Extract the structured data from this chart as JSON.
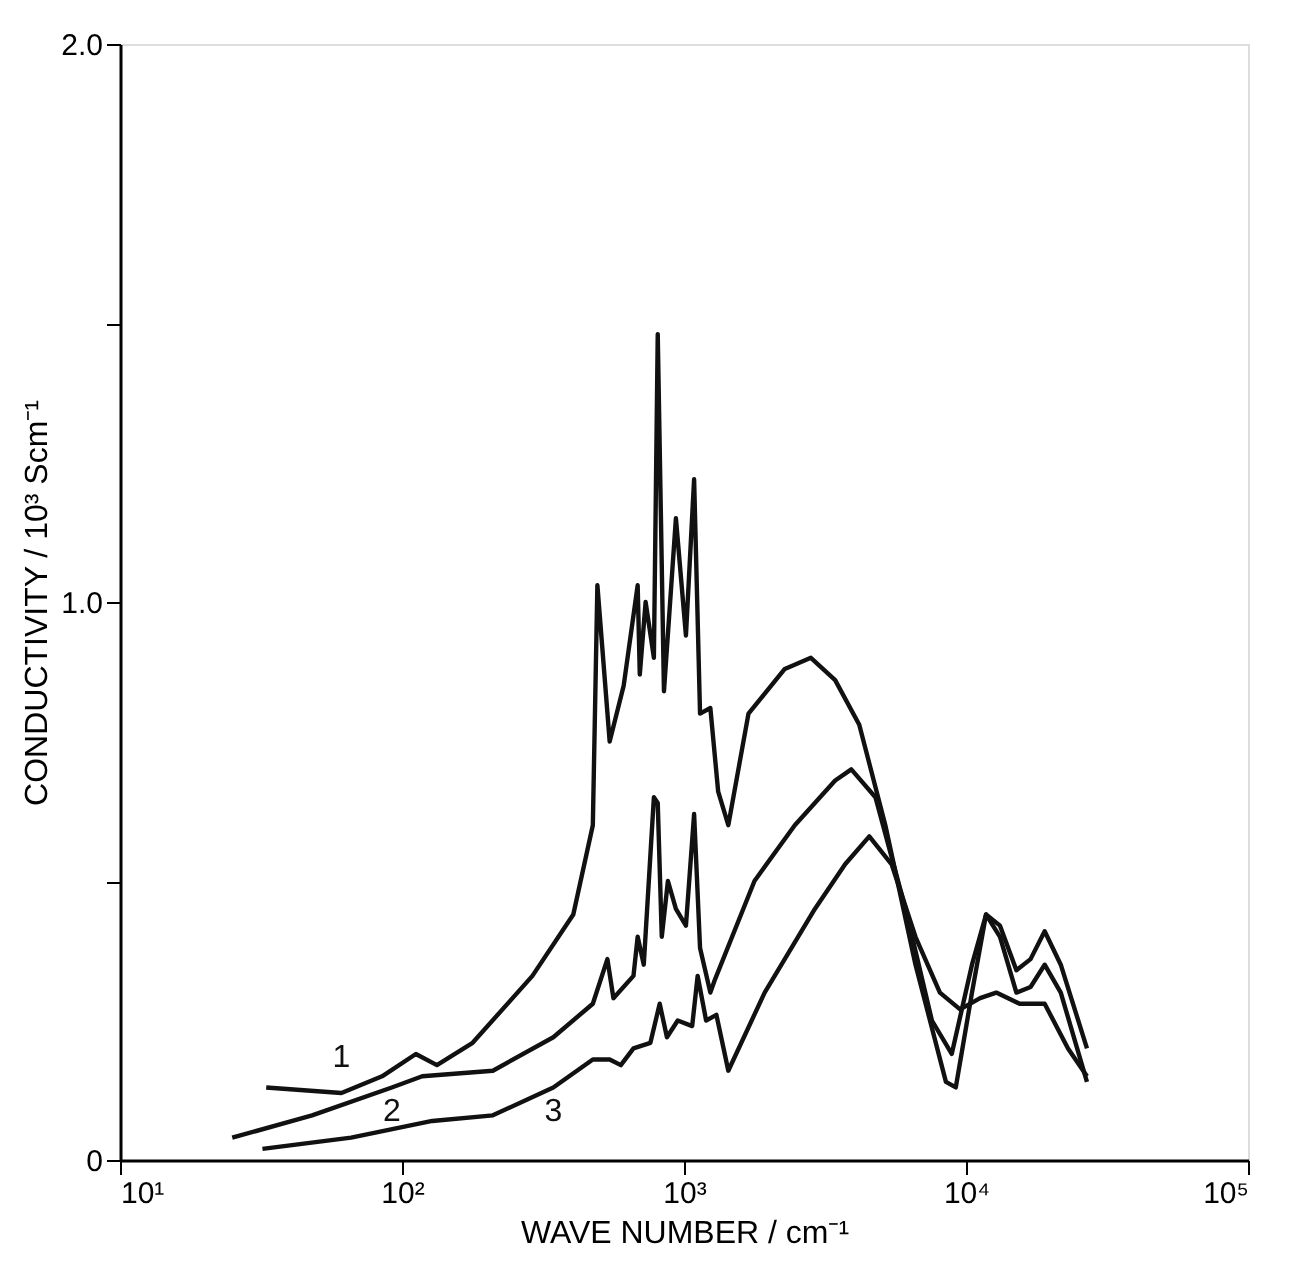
{
  "chart_data": {
    "type": "line",
    "xlabel": "WAVE NUMBER / cm⁻¹",
    "ylabel": "CONDUCTIVITY / 10³ Scm⁻¹",
    "log": "x",
    "grid": false,
    "marker": "none",
    "line_style": "solid",
    "xlim": [
      10,
      100000
    ],
    "xticks": [
      {
        "value": 10,
        "label": "10¹"
      },
      {
        "value": 100,
        "label": "10²"
      },
      {
        "value": 1000,
        "label": "10³"
      },
      {
        "value": 10000,
        "label": "10⁴"
      },
      {
        "value": 100000,
        "label": "10⁵"
      }
    ],
    "ylim": [
      0,
      2.0
    ],
    "yticks": [
      {
        "value": 0,
        "label": "0"
      },
      {
        "value": 0.5,
        "label": null
      },
      {
        "value": 1.0,
        "label": "1.0"
      },
      {
        "value": 1.5,
        "label": null
      },
      {
        "value": 2.0,
        "label": "2.0"
      }
    ],
    "series": [
      {
        "name": "1",
        "color": "#111111",
        "x": [
          33,
          61,
          85,
          112,
          133,
          178,
          290,
          405,
          475,
          493,
          545,
          611,
          685,
          697,
          731,
          782,
          807,
          849,
          936,
          1016,
          1086,
          1140,
          1240,
          1322,
          1436,
          1693,
          2277,
          2818,
          3436,
          4183,
          5176,
          6620,
          8488,
          9200,
          10500,
          11780,
          13200,
          15090,
          16940,
          19010,
          21680,
          26850
        ],
        "values": [
          0.13,
          0.12,
          0.15,
          0.19,
          0.17,
          0.21,
          0.33,
          0.44,
          0.6,
          1.03,
          0.75,
          0.85,
          1.03,
          0.87,
          1.0,
          0.9,
          1.48,
          0.84,
          1.15,
          0.94,
          1.22,
          0.8,
          0.81,
          0.66,
          0.6,
          0.8,
          0.88,
          0.9,
          0.86,
          0.78,
          0.6,
          0.35,
          0.14,
          0.13,
          0.3,
          0.44,
          0.42,
          0.34,
          0.36,
          0.41,
          0.35,
          0.2
        ]
      },
      {
        "name": "2",
        "color": "#111111",
        "x": [
          25,
          48,
          92,
          118,
          210,
          344,
          475,
          535,
          562,
          662,
          685,
          720,
          782,
          807,
          834,
          877,
          936,
          1016,
          1086,
          1140,
          1240,
          1280,
          1778,
          2471,
          3436,
          3920,
          4773,
          6107,
          7570,
          8900,
          10500,
          11780,
          13200,
          15090,
          16940,
          19010,
          21680,
          26850
        ],
        "values": [
          0.04,
          0.08,
          0.13,
          0.15,
          0.16,
          0.22,
          0.28,
          0.36,
          0.29,
          0.33,
          0.4,
          0.35,
          0.65,
          0.64,
          0.4,
          0.5,
          0.45,
          0.42,
          0.62,
          0.38,
          0.3,
          0.32,
          0.5,
          0.6,
          0.68,
          0.7,
          0.65,
          0.45,
          0.25,
          0.19,
          0.35,
          0.44,
          0.4,
          0.3,
          0.31,
          0.35,
          0.3,
          0.14
        ]
      },
      {
        "name": "3",
        "color": "#111111",
        "x": [
          32,
          66,
          128,
          210,
          344,
          475,
          545,
          597,
          662,
          760,
          820,
          870,
          950,
          1069,
          1118,
          1198,
          1303,
          1436,
          1932,
          2911,
          3727,
          4540,
          5449,
          6620,
          8080,
          9530,
          11220,
          12800,
          15500,
          19010,
          23000,
          26850
        ],
        "values": [
          0.02,
          0.04,
          0.07,
          0.08,
          0.13,
          0.18,
          0.18,
          0.17,
          0.2,
          0.21,
          0.28,
          0.22,
          0.25,
          0.24,
          0.33,
          0.25,
          0.26,
          0.16,
          0.3,
          0.45,
          0.53,
          0.58,
          0.53,
          0.4,
          0.3,
          0.27,
          0.29,
          0.3,
          0.28,
          0.28,
          0.2,
          0.15
        ]
      }
    ]
  }
}
